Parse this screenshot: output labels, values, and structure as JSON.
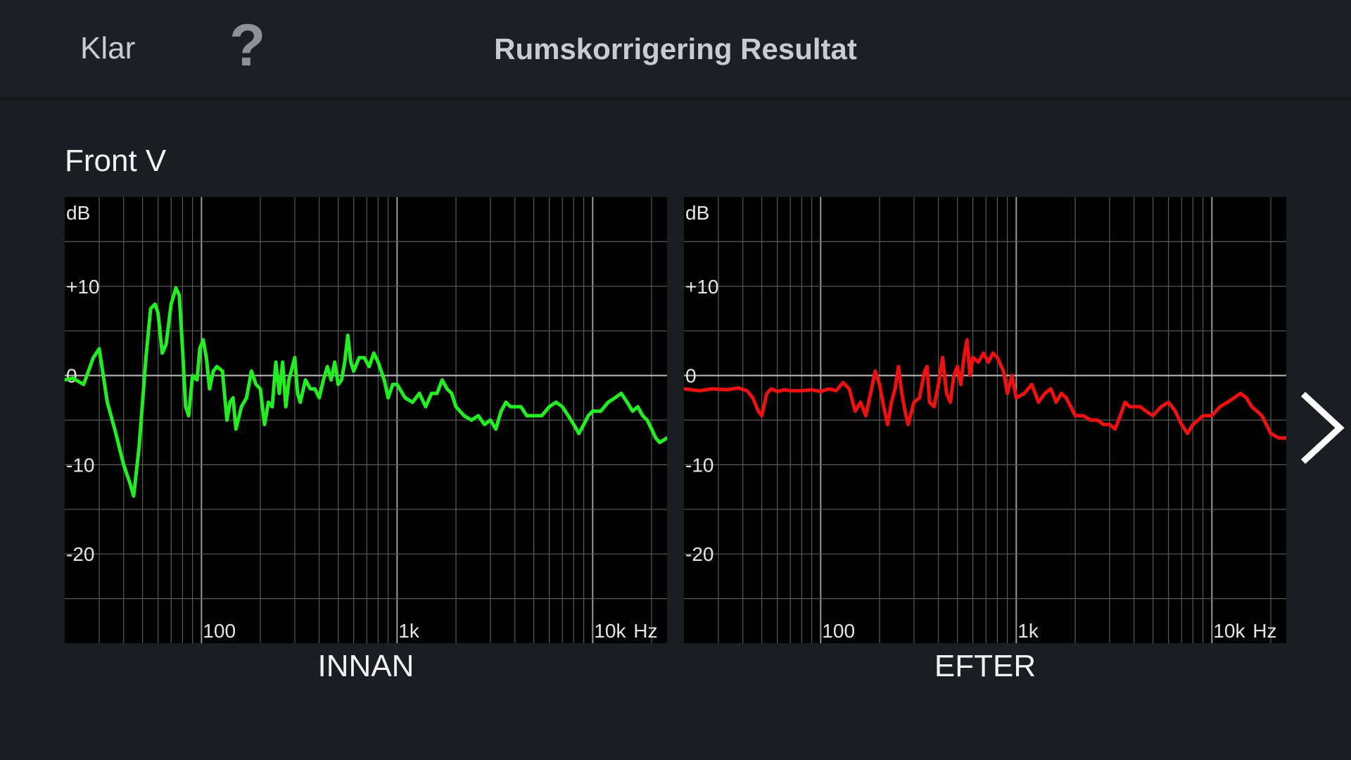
{
  "header": {
    "done_label": "Klar",
    "help_label": "?",
    "title": "Rumskorrigering Resultat"
  },
  "speaker": {
    "name": "Front V"
  },
  "colors": {
    "before": "#22ee22",
    "after": "#ee1111",
    "grid": "#5a5a5a",
    "zero": "#bdbdbd"
  },
  "icons": {
    "next": "chevron-right-icon"
  },
  "chart_data": [
    {
      "type": "line",
      "caption": "INNAN",
      "xscale": "log",
      "xlim": [
        20,
        24000
      ],
      "ylim": [
        -30,
        20
      ],
      "y_unit_label": "dB",
      "x_unit_label": "Hz",
      "y_ticks": [
        {
          "v": 10,
          "label": "+10"
        },
        {
          "v": 0,
          "label": "0"
        },
        {
          "v": -10,
          "label": "-10"
        },
        {
          "v": -20,
          "label": "-20"
        }
      ],
      "x_ticks": [
        {
          "v": 100,
          "label": "100"
        },
        {
          "v": 1000,
          "label": "1k"
        },
        {
          "v": 10000,
          "label": "10k"
        }
      ],
      "series": [
        {
          "color": "#22ee22",
          "points": [
            [
              20,
              -0.5
            ],
            [
              22,
              -0.3
            ],
            [
              25,
              -1
            ],
            [
              28,
              2
            ],
            [
              30,
              3
            ],
            [
              33,
              -3
            ],
            [
              36,
              -6
            ],
            [
              40,
              -10
            ],
            [
              43,
              -12
            ],
            [
              45,
              -13.5
            ],
            [
              48,
              -8
            ],
            [
              52,
              2
            ],
            [
              55,
              7.5
            ],
            [
              58,
              8
            ],
            [
              60,
              7
            ],
            [
              63,
              2.5
            ],
            [
              66,
              3.5
            ],
            [
              70,
              8
            ],
            [
              74,
              9.8
            ],
            [
              77,
              9
            ],
            [
              80,
              3
            ],
            [
              83,
              -3.5
            ],
            [
              86,
              -4.5
            ],
            [
              90,
              0
            ],
            [
              95,
              -0.5
            ],
            [
              98,
              3
            ],
            [
              102,
              4
            ],
            [
              106,
              2
            ],
            [
              110,
              -1.5
            ],
            [
              115,
              0.5
            ],
            [
              120,
              1
            ],
            [
              128,
              0.5
            ],
            [
              135,
              -5
            ],
            [
              140,
              -3
            ],
            [
              145,
              -2.5
            ],
            [
              150,
              -6
            ],
            [
              160,
              -3.5
            ],
            [
              170,
              -2.5
            ],
            [
              180,
              0.5
            ],
            [
              190,
              -1
            ],
            [
              200,
              -1.5
            ],
            [
              210,
              -5.5
            ],
            [
              220,
              -3
            ],
            [
              230,
              -3.5
            ],
            [
              240,
              1.5
            ],
            [
              250,
              -2
            ],
            [
              260,
              1.5
            ],
            [
              270,
              -3.5
            ],
            [
              280,
              -0.5
            ],
            [
              300,
              2
            ],
            [
              310,
              -2
            ],
            [
              320,
              -3
            ],
            [
              340,
              -0.5
            ],
            [
              360,
              -1.5
            ],
            [
              380,
              -1.5
            ],
            [
              400,
              -2.5
            ],
            [
              420,
              -0.5
            ],
            [
              440,
              1
            ],
            [
              460,
              -0.5
            ],
            [
              480,
              1.5
            ],
            [
              500,
              -1
            ],
            [
              520,
              -0.5
            ],
            [
              540,
              1.5
            ],
            [
              560,
              4.5
            ],
            [
              580,
              1.5
            ],
            [
              600,
              0.5
            ],
            [
              640,
              2
            ],
            [
              680,
              2
            ],
            [
              720,
              1
            ],
            [
              760,
              2.5
            ],
            [
              800,
              1.5
            ],
            [
              860,
              -0.5
            ],
            [
              900,
              -2.5
            ],
            [
              950,
              -1
            ],
            [
              1000,
              -1
            ],
            [
              1100,
              -2.5
            ],
            [
              1200,
              -3
            ],
            [
              1300,
              -2
            ],
            [
              1400,
              -3.5
            ],
            [
              1500,
              -2
            ],
            [
              1600,
              -2
            ],
            [
              1700,
              -0.5
            ],
            [
              1800,
              -1.5
            ],
            [
              1900,
              -2
            ],
            [
              2000,
              -3.5
            ],
            [
              2200,
              -4.5
            ],
            [
              2400,
              -5
            ],
            [
              2600,
              -4.5
            ],
            [
              2800,
              -5.5
            ],
            [
              3000,
              -5
            ],
            [
              3200,
              -6
            ],
            [
              3400,
              -4
            ],
            [
              3600,
              -3
            ],
            [
              3800,
              -3.5
            ],
            [
              4000,
              -3.5
            ],
            [
              4300,
              -3.5
            ],
            [
              4600,
              -4.5
            ],
            [
              5000,
              -4.5
            ],
            [
              5500,
              -4.5
            ],
            [
              6000,
              -3.5
            ],
            [
              6500,
              -3
            ],
            [
              7000,
              -3.5
            ],
            [
              7500,
              -4.5
            ],
            [
              8000,
              -5.5
            ],
            [
              8500,
              -6.5
            ],
            [
              9000,
              -5.5
            ],
            [
              9500,
              -4.5
            ],
            [
              10000,
              -4
            ],
            [
              11000,
              -4
            ],
            [
              12000,
              -3
            ],
            [
              13000,
              -2.5
            ],
            [
              14000,
              -2
            ],
            [
              15000,
              -3
            ],
            [
              16000,
              -4
            ],
            [
              17000,
              -3.5
            ],
            [
              18000,
              -4.5
            ],
            [
              19000,
              -5
            ],
            [
              20000,
              -6
            ],
            [
              21000,
              -7
            ],
            [
              22000,
              -7.5
            ],
            [
              24000,
              -7
            ]
          ]
        }
      ]
    },
    {
      "type": "line",
      "caption": "EFTER",
      "xscale": "log",
      "xlim": [
        20,
        24000
      ],
      "ylim": [
        -30,
        20
      ],
      "y_unit_label": "dB",
      "x_unit_label": "Hz",
      "y_ticks": [
        {
          "v": 10,
          "label": "+10"
        },
        {
          "v": 0,
          "label": "0"
        },
        {
          "v": -10,
          "label": "-10"
        },
        {
          "v": -20,
          "label": "-20"
        }
      ],
      "x_ticks": [
        {
          "v": 100,
          "label": "100"
        },
        {
          "v": 1000,
          "label": "1k"
        },
        {
          "v": 10000,
          "label": "10k"
        }
      ],
      "series": [
        {
          "color": "#ee1111",
          "points": [
            [
              20,
              -1.5
            ],
            [
              24,
              -1.7
            ],
            [
              28,
              -1.5
            ],
            [
              33,
              -1.6
            ],
            [
              38,
              -1.4
            ],
            [
              42,
              -1.7
            ],
            [
              45,
              -2.5
            ],
            [
              48,
              -4
            ],
            [
              50,
              -4.5
            ],
            [
              53,
              -2
            ],
            [
              56,
              -1.5
            ],
            [
              60,
              -1.8
            ],
            [
              65,
              -1.6
            ],
            [
              70,
              -1.7
            ],
            [
              80,
              -1.7
            ],
            [
              90,
              -1.6
            ],
            [
              100,
              -1.8
            ],
            [
              110,
              -1.5
            ],
            [
              120,
              -1.7
            ],
            [
              130,
              -0.8
            ],
            [
              140,
              -1.5
            ],
            [
              150,
              -4
            ],
            [
              160,
              -3
            ],
            [
              170,
              -4.5
            ],
            [
              180,
              -2
            ],
            [
              190,
              0.5
            ],
            [
              200,
              -1
            ],
            [
              210,
              -3.5
            ],
            [
              220,
              -5.5
            ],
            [
              230,
              -3
            ],
            [
              240,
              -1.5
            ],
            [
              250,
              1
            ],
            [
              260,
              -2
            ],
            [
              270,
              -4
            ],
            [
              280,
              -5.5
            ],
            [
              300,
              -3
            ],
            [
              320,
              -2.5
            ],
            [
              340,
              0.5
            ],
            [
              350,
              1
            ],
            [
              360,
              -3
            ],
            [
              380,
              -3.5
            ],
            [
              400,
              -1
            ],
            [
              420,
              2
            ],
            [
              440,
              -2
            ],
            [
              460,
              -3
            ],
            [
              480,
              0
            ],
            [
              500,
              1
            ],
            [
              520,
              -1
            ],
            [
              540,
              2
            ],
            [
              560,
              4
            ],
            [
              580,
              0
            ],
            [
              600,
              2
            ],
            [
              640,
              1.5
            ],
            [
              680,
              2.5
            ],
            [
              720,
              1.5
            ],
            [
              760,
              2.5
            ],
            [
              800,
              2
            ],
            [
              860,
              0.5
            ],
            [
              900,
              -2
            ],
            [
              950,
              0
            ],
            [
              1000,
              -2.5
            ],
            [
              1100,
              -2
            ],
            [
              1200,
              -1
            ],
            [
              1300,
              -3
            ],
            [
              1400,
              -2
            ],
            [
              1500,
              -1.5
            ],
            [
              1600,
              -3
            ],
            [
              1700,
              -2
            ],
            [
              1800,
              -2.5
            ],
            [
              1900,
              -3.5
            ],
            [
              2000,
              -4.5
            ],
            [
              2200,
              -4.5
            ],
            [
              2400,
              -5
            ],
            [
              2600,
              -5
            ],
            [
              2800,
              -5.5
            ],
            [
              3000,
              -5.5
            ],
            [
              3200,
              -6
            ],
            [
              3400,
              -4.5
            ],
            [
              3600,
              -3
            ],
            [
              3800,
              -3.5
            ],
            [
              4000,
              -3.5
            ],
            [
              4300,
              -3.5
            ],
            [
              4600,
              -4
            ],
            [
              5000,
              -4.5
            ],
            [
              5500,
              -3.5
            ],
            [
              6000,
              -3
            ],
            [
              6500,
              -4
            ],
            [
              7000,
              -5.5
            ],
            [
              7500,
              -6.5
            ],
            [
              8000,
              -5.5
            ],
            [
              8500,
              -5
            ],
            [
              9000,
              -4.5
            ],
            [
              10000,
              -4.5
            ],
            [
              11000,
              -3.5
            ],
            [
              12000,
              -3
            ],
            [
              13000,
              -2.5
            ],
            [
              14000,
              -2
            ],
            [
              15000,
              -2.5
            ],
            [
              16000,
              -3.5
            ],
            [
              17000,
              -4
            ],
            [
              18000,
              -4.5
            ],
            [
              19000,
              -5.5
            ],
            [
              20000,
              -6.5
            ],
            [
              22000,
              -7
            ],
            [
              24000,
              -7
            ]
          ]
        }
      ]
    }
  ]
}
